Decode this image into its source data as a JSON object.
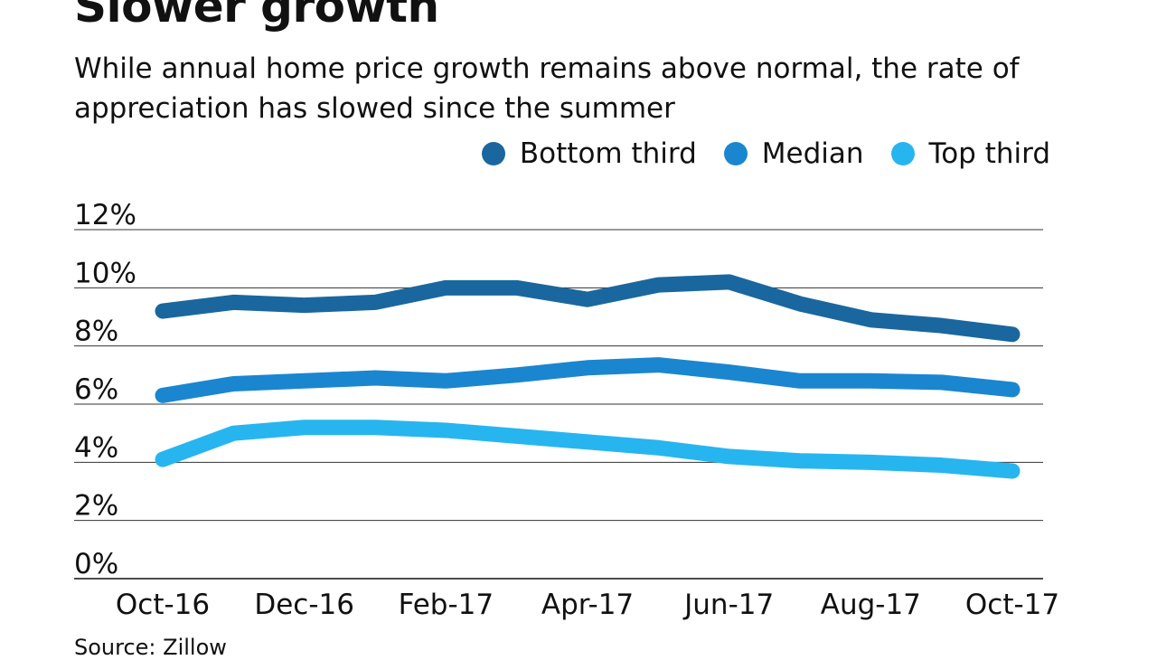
{
  "chart_data": {
    "type": "line",
    "title": "Slower growth",
    "subtitle": "While annual home price growth remains above normal, the rate of appreciation has slowed since the summer",
    "source": "Source: Zillow",
    "categories": [
      "Oct-16",
      "Nov-16",
      "Dec-16",
      "Jan-17",
      "Feb-17",
      "Mar-17",
      "Apr-17",
      "May-17",
      "Jun-17",
      "Jul-17",
      "Aug-17",
      "Sep-17",
      "Oct-17"
    ],
    "x_tick_labels": [
      "Oct-16",
      "Dec-16",
      "Feb-17",
      "Apr-17",
      "Jun-17",
      "Aug-17",
      "Oct-17"
    ],
    "y_tick_labels": [
      "0%",
      "2%",
      "4%",
      "6%",
      "8%",
      "10%",
      "12%"
    ],
    "ylim": [
      0,
      12
    ],
    "grid": true,
    "legend_placement": "top-right",
    "series": [
      {
        "name": "Bottom third",
        "color": "#1a679f",
        "values": [
          9.2,
          9.5,
          9.4,
          9.5,
          10.0,
          10.0,
          9.6,
          10.1,
          10.2,
          9.45,
          8.9,
          8.7,
          8.4
        ]
      },
      {
        "name": "Median",
        "color": "#1b86d0",
        "values": [
          6.3,
          6.7,
          6.8,
          6.9,
          6.8,
          7.0,
          7.25,
          7.35,
          7.1,
          6.8,
          6.8,
          6.75,
          6.5
        ]
      },
      {
        "name": "Top third",
        "color": "#27b5f0",
        "values": [
          4.1,
          5.0,
          5.2,
          5.2,
          5.1,
          4.9,
          4.7,
          4.5,
          4.2,
          4.05,
          4.0,
          3.9,
          3.7
        ]
      }
    ]
  }
}
